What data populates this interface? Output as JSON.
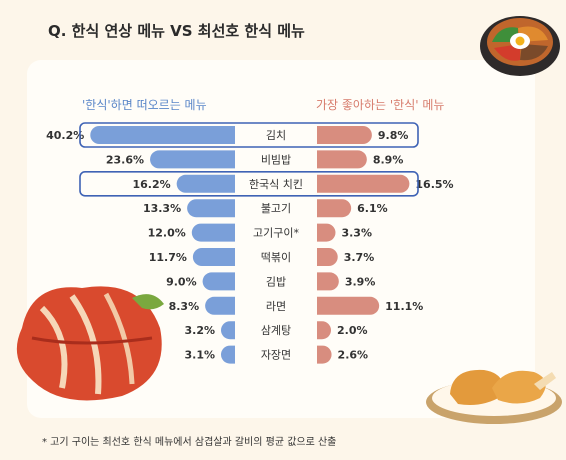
{
  "title": "Q. 한식 연상 메뉴 VS 최선호 한식 메뉴",
  "footnote": "* 고기 구이는 최선호 한식 메뉴에서 삼겹살과 갈비의 평균 값으로 산출",
  "colors": {
    "left_bar": "#7a9fd9",
    "right_bar": "#d88d7f",
    "highlight_border": "#3f63b5",
    "background": "#fdf6ea",
    "card": "#fffdf8"
  },
  "chart_data": {
    "type": "bar",
    "categories": [
      "김치",
      "비빔밥",
      "한국식 치킨",
      "불고기",
      "고기구이*",
      "떡볶이",
      "김밥",
      "라면",
      "삼계탕",
      "자장면"
    ],
    "series": [
      {
        "name": "'한식'하면 떠오르는 메뉴",
        "values": [
          40.2,
          23.6,
          16.2,
          13.3,
          12.0,
          11.7,
          9.0,
          8.3,
          3.2,
          3.1
        ],
        "labels": [
          "40.2",
          "23.6",
          "16.2",
          "13.3",
          "12.0",
          "11.7",
          "9.0",
          "8.3",
          "3.2",
          "3.1"
        ]
      },
      {
        "name": "가장 좋아하는 '한식' 메뉴",
        "values": [
          9.8,
          8.9,
          16.5,
          6.1,
          3.3,
          3.7,
          3.9,
          11.1,
          2.0,
          2.6
        ],
        "labels": [
          "9.8",
          "8.9",
          "16.5",
          "6.1",
          "3.3",
          "3.7",
          "3.9",
          "11.1",
          "2.0",
          "2.6"
        ]
      }
    ],
    "unit": "%",
    "highlighted": [
      "김치",
      "한국식 치킨"
    ]
  }
}
